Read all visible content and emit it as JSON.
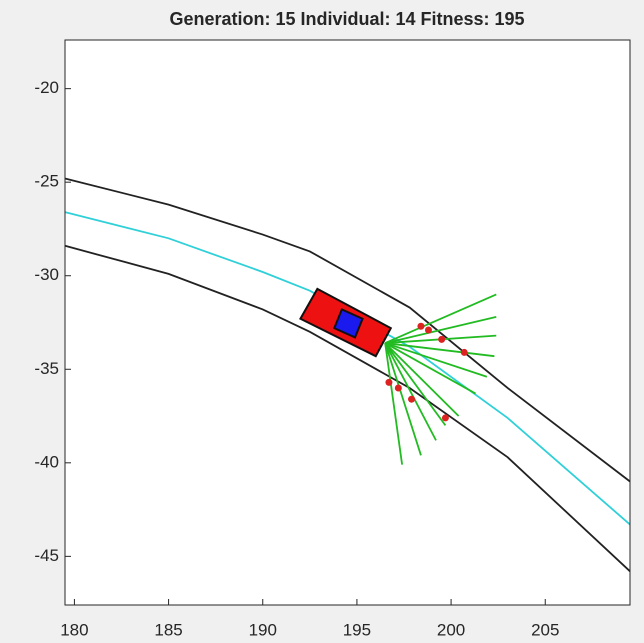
{
  "chart_data": {
    "type": "line",
    "title": "Generation: 15 Individual: 14 Fitness: 195",
    "xlim": [
      179.5,
      209.5
    ],
    "ylim": [
      -47.6,
      -17.4
    ],
    "xticks": [
      180,
      185,
      190,
      195,
      200,
      205
    ],
    "yticks": [
      -20,
      -25,
      -30,
      -35,
      -40,
      -45
    ],
    "series": [
      {
        "color": "#222222",
        "x": [
          179.5,
          185,
          190,
          192.5,
          197.8,
          203,
          209.5
        ],
        "values": [
          -24.8,
          -26.2,
          -27.8,
          -28.7,
          -31.7,
          -36,
          -41
        ]
      },
      {
        "color": "#30d0d8",
        "x": [
          179.5,
          185,
          190,
          192.5,
          197.8,
          203,
          209.5
        ],
        "values": [
          -26.6,
          -28.0,
          -29.8,
          -30.8,
          -33.8,
          -37.6,
          -43.3
        ]
      },
      {
        "color": "#222222",
        "x": [
          179.5,
          185,
          190,
          192.5,
          197.8,
          203,
          209.5
        ],
        "values": [
          -28.4,
          -29.9,
          -31.8,
          -33,
          -36,
          -39.7,
          -45.8
        ]
      },
      {
        "color": "#22bb22",
        "x": [
          196.5,
          202.4,
          null,
          196.5,
          202.4,
          null,
          196.5,
          202.4,
          null,
          196.5,
          202.3,
          null,
          196.5,
          201.9,
          null,
          196.5,
          201.3,
          null,
          196.5,
          200.4,
          null,
          196.5,
          199.7,
          null,
          196.5,
          199.2,
          null,
          196.5,
          198.4,
          null,
          196.5,
          197.4
        ],
        "values": [
          -33.6,
          -31.0,
          null,
          -33.6,
          -32.2,
          null,
          -33.6,
          -33.2,
          null,
          -33.6,
          -34.3,
          null,
          -33.6,
          -35.4,
          null,
          -33.6,
          -36.3,
          null,
          -33.6,
          -37.5,
          null,
          -33.6,
          -38.0,
          null,
          -33.6,
          -38.8,
          null,
          -33.6,
          -39.6,
          null,
          -33.6,
          -40.1
        ]
      },
      {
        "color": "#ee1111",
        "fill": true,
        "x": [
          192.9,
          196.8,
          196.0,
          192.0
        ],
        "values": [
          -30.7,
          -32.8,
          -34.3,
          -32.3
        ]
      },
      {
        "color": "#1a1aee",
        "fill": true,
        "x": [
          194.2,
          195.3,
          194.9,
          193.8
        ],
        "values": [
          -31.8,
          -32.3,
          -33.3,
          -32.8
        ]
      },
      {
        "color": "#dd2222",
        "marker": true,
        "x": [
          198.4,
          198.8,
          199.5,
          200.7,
          196.7,
          197.2,
          197.9,
          199.7
        ],
        "values": [
          -32.7,
          -32.9,
          -33.4,
          -34.1,
          -35.7,
          -36.0,
          -36.6,
          -37.6
        ]
      }
    ]
  }
}
